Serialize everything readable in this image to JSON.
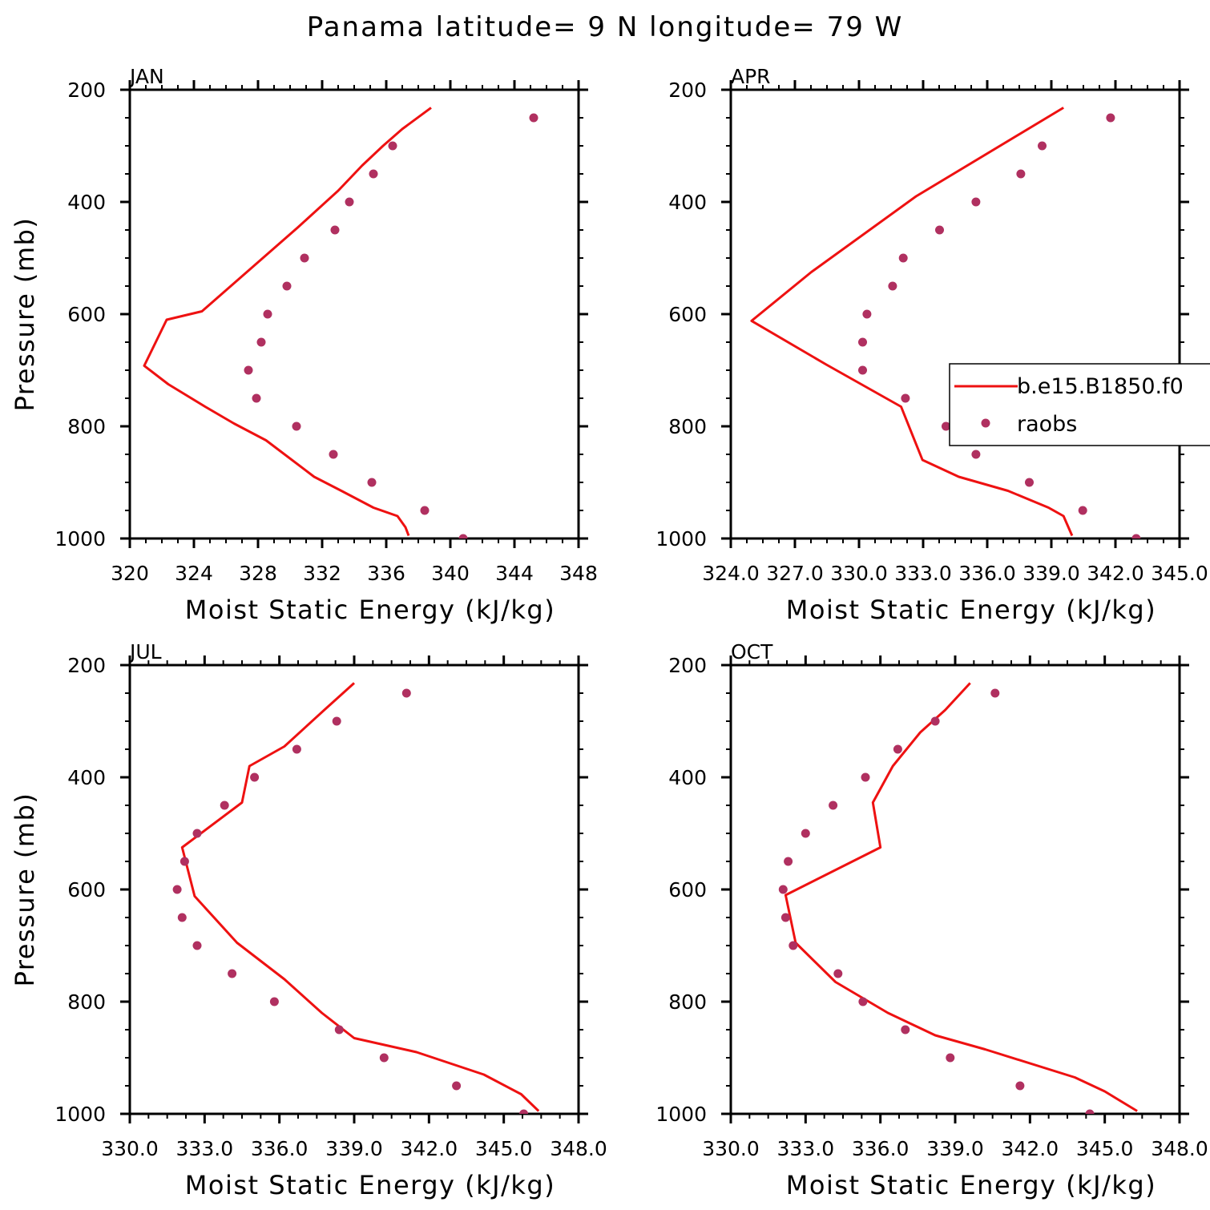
{
  "title": "Panama  latitude= 9 N longitude= 79 W",
  "colors": {
    "model": "#ee1111",
    "obs": "#b03060",
    "axis": "#000000"
  },
  "legend": {
    "placement": "inside-right",
    "entries": [
      {
        "label": "b.e15.B1850.f0",
        "style": "line",
        "color": "#ee1111"
      },
      {
        "label": "raobs",
        "style": "marker",
        "color": "#b03060"
      }
    ]
  },
  "chart_data": [
    {
      "type": "line",
      "title": "JAN",
      "xlabel": "Moist Static Energy (kJ/kg)",
      "ylabel": "Pressure (mb)",
      "xlim": [
        320,
        348
      ],
      "ylim": [
        200,
        1000
      ],
      "y_inverted": true,
      "xticks": [
        320,
        324,
        328,
        332,
        336,
        340,
        344,
        348
      ],
      "xtick_labels": [
        "320",
        "324",
        "328",
        "332",
        "336",
        "340",
        "344",
        "348"
      ],
      "yticks": [
        200,
        400,
        600,
        800,
        1000
      ],
      "ytick_labels": [
        "200",
        "400",
        "600",
        "800",
        "1000"
      ],
      "series": [
        {
          "name": "b.e15.B1850.f0",
          "kind": "line",
          "x": [
            338.8,
            337.0,
            335.8,
            334.5,
            333.0,
            330.5,
            328.5,
            326.5,
            324.5,
            322.3,
            320.9,
            322.4,
            324.7,
            326.5,
            328.5,
            331.5,
            333.2,
            335.2,
            336.7,
            337.2,
            337.4
          ],
          "y": [
            232,
            270,
            300,
            335,
            380,
            445,
            495,
            545,
            595,
            610,
            692,
            725,
            765,
            795,
            825,
            890,
            915,
            945,
            960,
            980,
            995
          ]
        },
        {
          "name": "raobs",
          "kind": "scatter",
          "x": [
            345.2,
            336.4,
            335.2,
            333.7,
            332.8,
            330.9,
            329.8,
            328.6,
            328.2,
            327.4,
            327.9,
            330.4,
            332.7,
            335.1,
            338.4,
            340.8
          ],
          "y": [
            250,
            300,
            350,
            400,
            450,
            500,
            550,
            600,
            650,
            700,
            750,
            800,
            850,
            900,
            950,
            1000
          ]
        }
      ]
    },
    {
      "type": "line",
      "title": "APR",
      "xlabel": "Moist Static Energy (kJ/kg)",
      "ylabel": "",
      "xlim": [
        324.03,
        345.03
      ],
      "ylim": [
        200,
        1000
      ],
      "y_inverted": true,
      "xticks": [
        324.03,
        327.03,
        330.03,
        333.03,
        336.03,
        339.03,
        342.03,
        345.03
      ],
      "xtick_labels": [
        "324.0",
        "327.0",
        "330.0",
        "333.0",
        "336.0",
        "339.0",
        "342.0",
        "345.0"
      ],
      "yticks": [
        200,
        400,
        600,
        800,
        1000
      ],
      "ytick_labels": [
        "200",
        "400",
        "600",
        "800",
        "1000"
      ],
      "series": [
        {
          "name": "b.e15.B1850.f0",
          "kind": "line",
          "x": [
            339.6,
            332.7,
            327.8,
            325.0,
            328.5,
            332.0,
            332.6,
            333.0,
            334.7,
            337.0,
            338.9,
            339.6,
            340.0
          ],
          "y": [
            232,
            390,
            525,
            612,
            690,
            765,
            822,
            860,
            890,
            915,
            945,
            960,
            995
          ]
        },
        {
          "name": "raobs",
          "kind": "scatter",
          "x": [
            341.8,
            338.6,
            337.6,
            335.5,
            333.8,
            332.1,
            331.6,
            330.4,
            330.2,
            330.2,
            332.2,
            334.1,
            335.5,
            338.0,
            340.5,
            343.0
          ],
          "y": [
            250,
            300,
            350,
            400,
            450,
            500,
            550,
            600,
            650,
            700,
            750,
            800,
            850,
            900,
            950,
            1000
          ]
        }
      ]
    },
    {
      "type": "line",
      "title": "JUL",
      "xlabel": "Moist Static Energy (kJ/kg)",
      "ylabel": "Pressure (mb)",
      "xlim": [
        330,
        348
      ],
      "ylim": [
        200,
        1000
      ],
      "y_inverted": true,
      "xticks": [
        330,
        333,
        336,
        339,
        342,
        345,
        348
      ],
      "xtick_labels": [
        "330.0",
        "333.0",
        "336.0",
        "339.0",
        "342.0",
        "345.0",
        "348.0"
      ],
      "yticks": [
        200,
        400,
        600,
        800,
        1000
      ],
      "ytick_labels": [
        "200",
        "400",
        "600",
        "800",
        "1000"
      ],
      "series": [
        {
          "name": "b.e15.B1850.f0",
          "kind": "line",
          "x": [
            339.0,
            337.8,
            336.2,
            334.8,
            334.5,
            332.1,
            332.6,
            334.3,
            336.2,
            337.7,
            339.0,
            341.5,
            344.2,
            345.7,
            346.4
          ],
          "y": [
            232,
            280,
            345,
            380,
            445,
            525,
            612,
            695,
            760,
            820,
            865,
            890,
            930,
            965,
            995
          ]
        },
        {
          "name": "raobs",
          "kind": "scatter",
          "x": [
            341.1,
            338.3,
            336.7,
            335.0,
            333.8,
            332.7,
            332.2,
            331.9,
            332.1,
            332.7,
            334.1,
            335.8,
            338.4,
            340.2,
            343.1,
            345.8
          ],
          "y": [
            250,
            300,
            350,
            400,
            450,
            500,
            550,
            600,
            650,
            700,
            750,
            800,
            850,
            900,
            950,
            1000
          ]
        }
      ]
    },
    {
      "type": "line",
      "title": "OCT",
      "xlabel": "Moist Static Energy (kJ/kg)",
      "ylabel": "",
      "xlim": [
        330,
        348
      ],
      "ylim": [
        200,
        1000
      ],
      "y_inverted": true,
      "xticks": [
        330,
        333,
        336,
        339,
        342,
        345,
        348
      ],
      "xtick_labels": [
        "330.0",
        "333.0",
        "336.0",
        "339.0",
        "342.0",
        "345.0",
        "348.0"
      ],
      "yticks": [
        200,
        400,
        600,
        800,
        1000
      ],
      "ytick_labels": [
        "200",
        "400",
        "600",
        "800",
        "1000"
      ],
      "series": [
        {
          "name": "b.e15.B1850.f0",
          "kind": "line",
          "x": [
            339.6,
            338.6,
            337.6,
            336.5,
            335.7,
            336.0,
            332.2,
            332.6,
            334.2,
            336.3,
            338.2,
            340.2,
            343.8,
            345.0,
            346.3
          ],
          "y": [
            232,
            280,
            320,
            380,
            445,
            525,
            610,
            695,
            765,
            820,
            860,
            885,
            935,
            960,
            995
          ]
        },
        {
          "name": "raobs",
          "kind": "scatter",
          "x": [
            340.6,
            338.2,
            336.7,
            335.4,
            334.1,
            333.0,
            332.3,
            332.1,
            332.2,
            332.5,
            334.3,
            335.3,
            337.0,
            338.8,
            341.6,
            344.4
          ],
          "y": [
            250,
            300,
            350,
            400,
            450,
            500,
            550,
            600,
            650,
            700,
            750,
            800,
            850,
            900,
            950,
            1000
          ]
        }
      ]
    }
  ]
}
